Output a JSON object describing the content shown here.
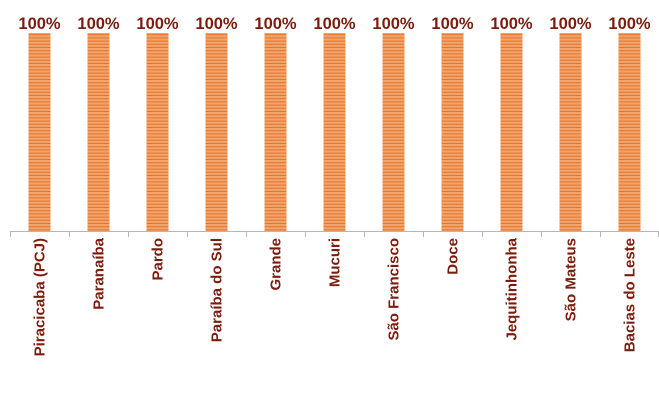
{
  "chart_data": {
    "type": "bar",
    "categories": [
      "Piracicaba (PCJ)",
      "Paranaíba",
      "Pardo",
      "Paraíba do Sul",
      "Grande",
      "Mucuri",
      "São Francisco",
      "Doce",
      "Jequitinhonha",
      "São Mateus",
      "Bacias do Leste"
    ],
    "values": [
      100,
      100,
      100,
      100,
      100,
      100,
      100,
      100,
      100,
      100,
      100
    ],
    "data_labels": [
      "100%",
      "100%",
      "100%",
      "100%",
      "100%",
      "100%",
      "100%",
      "100%",
      "100%",
      "100%",
      "100%"
    ],
    "title": "",
    "xlabel": "",
    "ylabel": "",
    "ylim": [
      0,
      100
    ],
    "grid": false,
    "legend": "none",
    "colors": {
      "bar_fill": "#f4a36a",
      "bar_stripe": "#e0762e",
      "label_text": "#7b1c0e",
      "axis": "#b7b7b7"
    }
  }
}
